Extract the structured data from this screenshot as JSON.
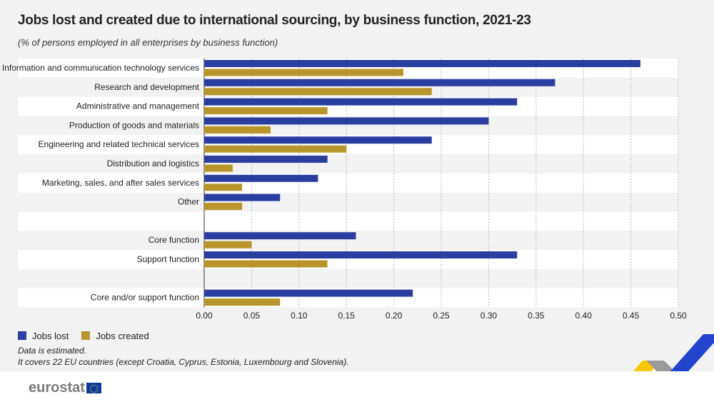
{
  "title": "Jobs lost and created due to international sourcing, by business function, 2021-23",
  "subtitle": "(% of persons employed in all enterprises by business function)",
  "chart_data": {
    "type": "bar",
    "orientation": "horizontal",
    "categories": [
      "Information and communication technology services",
      "Research and development",
      "Administrative and management",
      "Production of goods and materials",
      "Engineering and related technical services",
      "Distribution and logistics",
      "Marketing, sales, and after sales services",
      "Other",
      "",
      "Core function",
      "Support function",
      "",
      "Core and/or support function"
    ],
    "series": [
      {
        "name": "Jobs lost",
        "color": "#2a3ea0",
        "values": [
          0.46,
          0.37,
          0.33,
          0.3,
          0.24,
          0.13,
          0.12,
          0.08,
          null,
          0.16,
          0.33,
          null,
          0.22
        ]
      },
      {
        "name": "Jobs created",
        "color": "#b8952a",
        "values": [
          0.21,
          0.24,
          0.13,
          0.07,
          0.15,
          0.03,
          0.04,
          0.04,
          null,
          0.05,
          0.13,
          null,
          0.08
        ]
      }
    ],
    "xlim": [
      0,
      0.5
    ],
    "xticks": [
      "0.00",
      "0.05",
      "0.10",
      "0.15",
      "0.20",
      "0.25",
      "0.30",
      "0.35",
      "0.40",
      "0.45",
      "0.50"
    ],
    "grid": true,
    "legend": "bottom-left"
  },
  "notes": [
    "Data is estimated.",
    "It covers 22 EU countries (except Croatia, Cyprus, Estonia, Luxembourg and Slovenia)."
  ],
  "logo": "eurostat"
}
